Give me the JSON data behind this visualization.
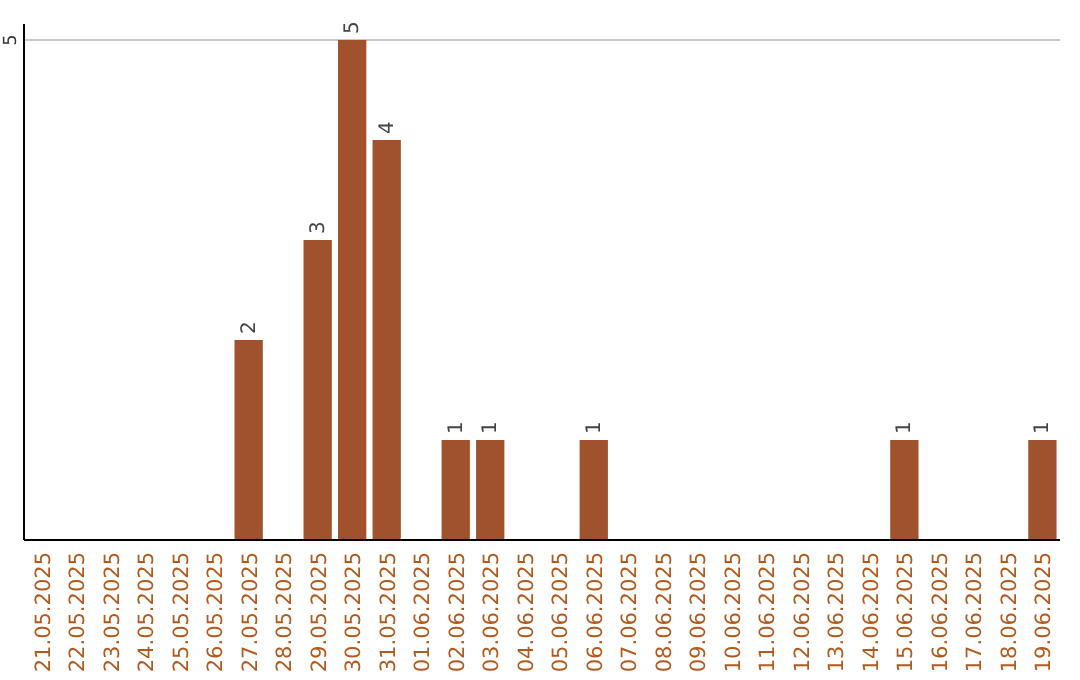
{
  "chart_data": {
    "type": "bar",
    "categories": [
      "21.05.2025",
      "22.05.2025",
      "23.05.2025",
      "24.05.2025",
      "25.05.2025",
      "26.05.2025",
      "27.05.2025",
      "28.05.2025",
      "29.05.2025",
      "30.05.2025",
      "31.05.2025",
      "01.06.2025",
      "02.06.2025",
      "03.06.2025",
      "04.06.2025",
      "05.06.2025",
      "06.06.2025",
      "07.06.2025",
      "08.06.2025",
      "09.06.2025",
      "10.06.2025",
      "11.06.2025",
      "12.06.2025",
      "13.06.2025",
      "14.06.2025",
      "15.06.2025",
      "16.06.2025",
      "17.06.2025",
      "18.06.2025",
      "19.06.2025"
    ],
    "values": [
      0,
      0,
      0,
      0,
      0,
      0,
      2,
      0,
      3,
      5,
      4,
      0,
      1,
      1,
      0,
      0,
      1,
      0,
      0,
      0,
      0,
      0,
      0,
      0,
      0,
      1,
      0,
      0,
      0,
      1
    ],
    "value_labels": [
      null,
      null,
      null,
      null,
      null,
      null,
      "2",
      null,
      "3",
      "5",
      "4",
      null,
      "1",
      "1",
      null,
      null,
      "1",
      null,
      null,
      null,
      null,
      null,
      null,
      null,
      null,
      "1",
      null,
      null,
      null,
      "1"
    ],
    "color": "#a0522d",
    "ylim": [
      0,
      5
    ],
    "yticks": [
      5
    ],
    "ref_lines": [
      {
        "axis": "y",
        "value": 5,
        "color": "#c8c8c8"
      }
    ]
  }
}
